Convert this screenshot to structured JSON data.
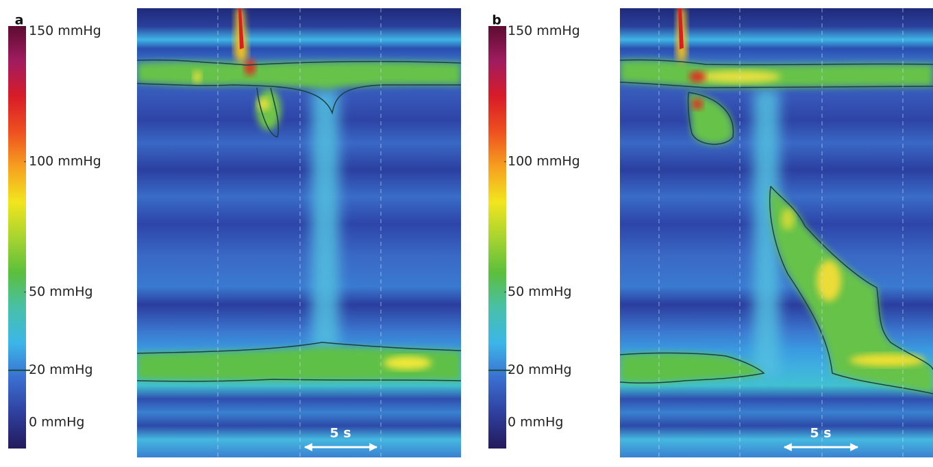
{
  "chart_data": [
    {
      "type": "heatmap",
      "panel_label": "a",
      "colorbar": {
        "clim": [
          -10,
          152
        ],
        "ticks": [
          {
            "value": 150,
            "label": "150 mmHg"
          },
          {
            "value": 100,
            "label": "100 mmHg"
          },
          {
            "value": 50,
            "label": "50 mmHg"
          },
          {
            "value": 20,
            "label": "20 mmHg"
          },
          {
            "value": 0,
            "label": "0 mmHg"
          }
        ],
        "colors": [
          "#231a5c",
          "#2f3f9e",
          "#3a6fd0",
          "#3cb6e8",
          "#48c0a8",
          "#5cbf3c",
          "#a8d430",
          "#f2e51e",
          "#f6a020",
          "#ee5020",
          "#d81c28",
          "#a01c60",
          "#5c0c30"
        ],
        "contour_level": 20
      },
      "scale_bar": "5 s"
    },
    {
      "type": "heatmap",
      "panel_label": "b",
      "colorbar": {
        "clim": [
          -10,
          152
        ],
        "ticks": [
          {
            "value": 150,
            "label": "150 mmHg"
          },
          {
            "value": 100,
            "label": "100 mmHg"
          },
          {
            "value": 50,
            "label": "50 mmHg"
          },
          {
            "value": 20,
            "label": "20 mmHg"
          },
          {
            "value": 0,
            "label": "0 mmHg"
          }
        ],
        "colors": [
          "#231a5c",
          "#2f3f9e",
          "#3a6fd0",
          "#3cb6e8",
          "#48c0a8",
          "#5cbf3c",
          "#a8d430",
          "#f2e51e",
          "#f6a020",
          "#ee5020",
          "#d81c28",
          "#a01c60",
          "#5c0c30"
        ],
        "contour_level": 20
      },
      "scale_bar": "5 s"
    }
  ]
}
